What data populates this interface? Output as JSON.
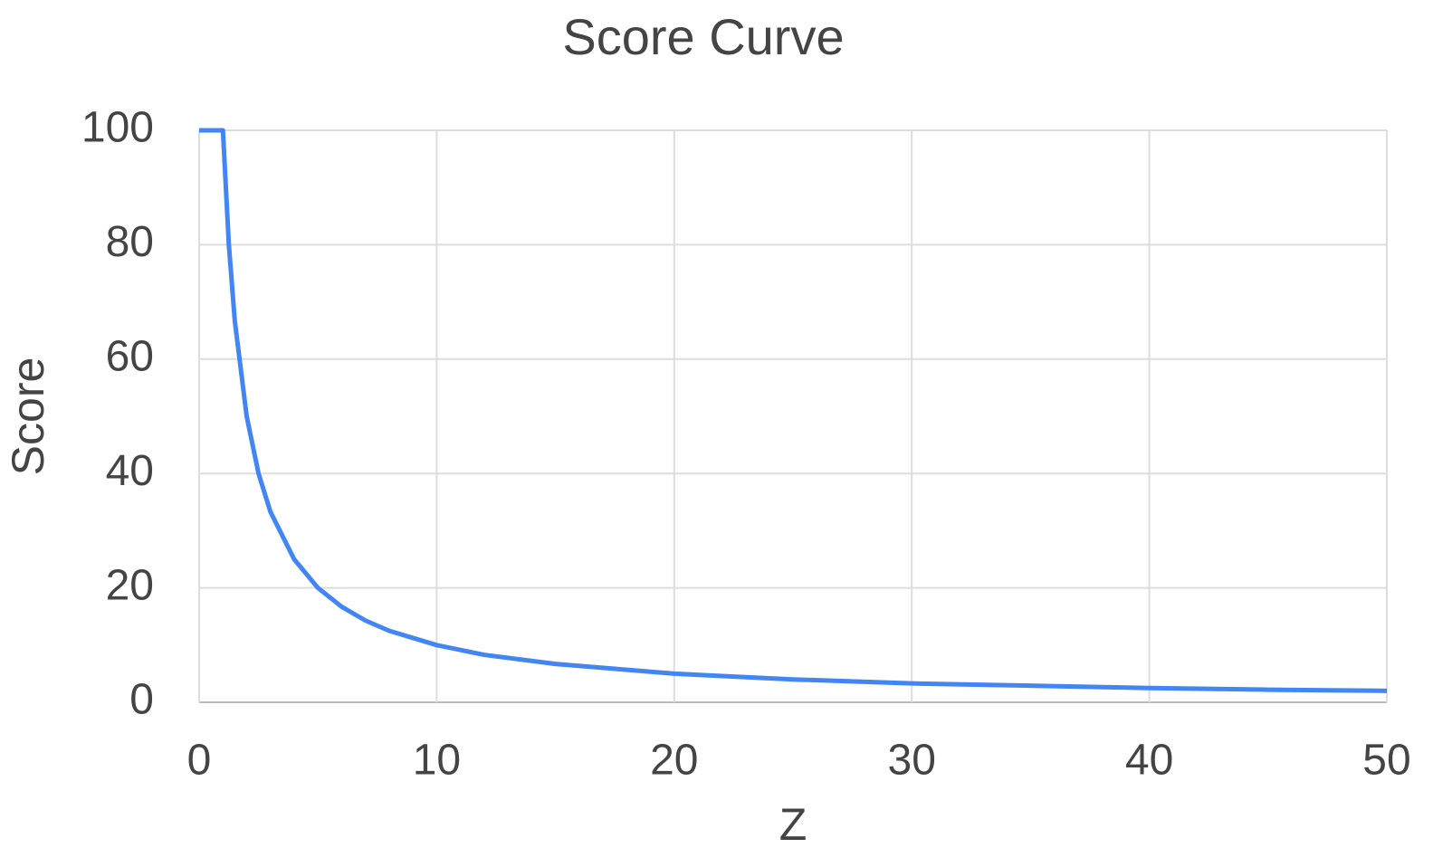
{
  "chart_data": {
    "type": "line",
    "title": "Score Curve",
    "x_label": "Z",
    "y_label": "Score",
    "x": [
      0,
      1,
      1.25,
      1.5,
      2,
      2.5,
      3,
      4,
      5,
      6,
      7,
      8,
      10,
      12,
      15,
      20,
      25,
      30,
      35,
      40,
      45,
      50
    ],
    "values": [
      100,
      100,
      80,
      66.7,
      50,
      40,
      33.3,
      25,
      20,
      16.7,
      14.3,
      12.5,
      10,
      8.3,
      6.7,
      5,
      4,
      3.3,
      2.9,
      2.5,
      2.2,
      2
    ],
    "color": "#4285f4",
    "xlim": [
      0,
      50
    ],
    "xticks": [
      0,
      10,
      20,
      30,
      40,
      50
    ],
    "ylim": [
      0,
      100
    ],
    "yticks": [
      0,
      20,
      40,
      60,
      80,
      100
    ],
    "grid": true
  }
}
